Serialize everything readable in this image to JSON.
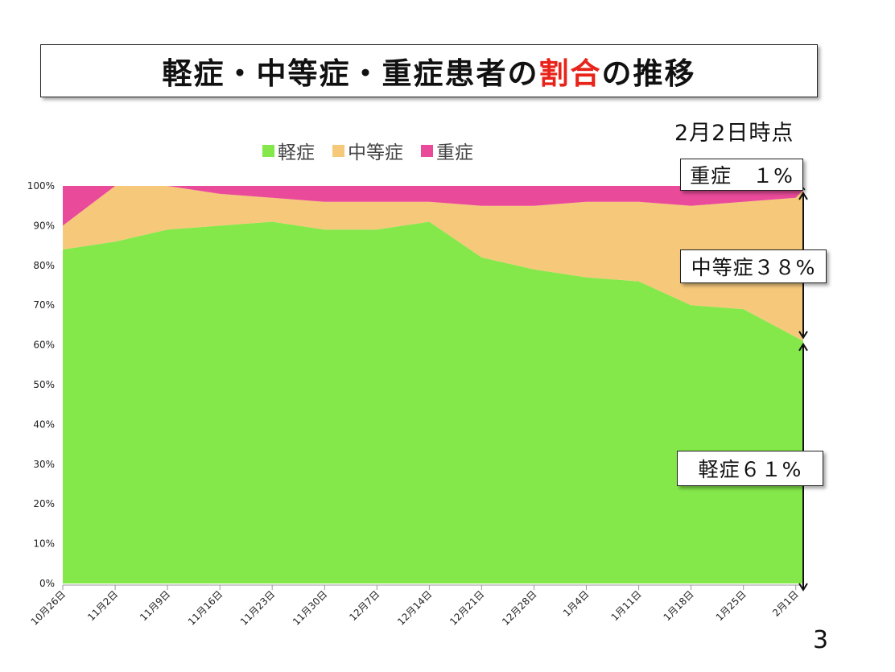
{
  "title": {
    "pre": "軽症・中等症・重症患者の",
    "accent": "割合",
    "post": "の推移"
  },
  "as_of": "2月2日時点",
  "callouts": {
    "severe": "重症　１%",
    "moderate": "中等症３８%",
    "mild": "軽症６１%"
  },
  "page_number": "3",
  "colors": {
    "mild": "#84e84a",
    "moderate": "#f5c87a",
    "severe": "#e94a9a",
    "accent": "#e8231a"
  },
  "chart_data": {
    "type": "area",
    "stacked": true,
    "normalized": true,
    "legend_position": "top",
    "grid": false,
    "ylim": [
      0,
      100
    ],
    "y_ticks": [
      "0%",
      "10%",
      "20%",
      "30%",
      "40%",
      "50%",
      "60%",
      "70%",
      "80%",
      "90%",
      "100%"
    ],
    "x_tick_labels": [
      "10月26日",
      "11月2日",
      "11月9日",
      "11月16日",
      "11月23日",
      "11月30日",
      "12月7日",
      "12月14日",
      "12月21日",
      "12月28日",
      "1月4日",
      "1月11日",
      "1月18日",
      "1月25日",
      "2月1日"
    ],
    "x": [
      "10月26日",
      "11月2日",
      "11月9日",
      "11月16日",
      "11月23日",
      "11月30日",
      "12月7日",
      "12月14日",
      "12月21日",
      "12月28日",
      "1月4日",
      "1月11日",
      "1月18日",
      "1月25日",
      "2月1日",
      "2月2日"
    ],
    "series": [
      {
        "name": "軽症",
        "values": [
          84,
          86,
          89,
          90,
          91,
          89,
          89,
          91,
          82,
          79,
          77,
          76,
          70,
          69,
          62,
          61
        ]
      },
      {
        "name": "中等症",
        "values": [
          6,
          14,
          11,
          8,
          6,
          7,
          7,
          5,
          13,
          16,
          19,
          20,
          25,
          27,
          35,
          38
        ]
      },
      {
        "name": "重症",
        "values": [
          10,
          0,
          0,
          2,
          3,
          4,
          4,
          4,
          5,
          5,
          4,
          4,
          5,
          4,
          3,
          1
        ]
      }
    ]
  }
}
